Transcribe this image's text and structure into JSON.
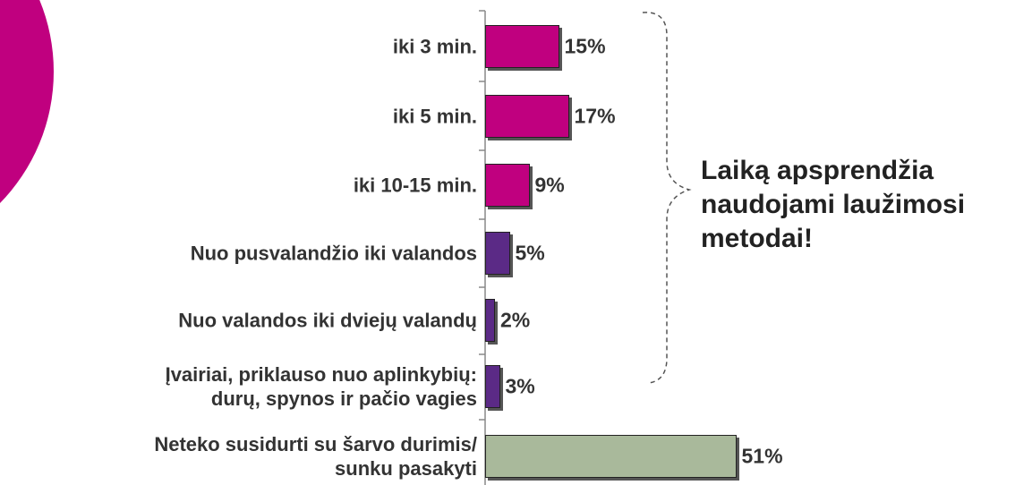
{
  "chart_data": {
    "type": "bar",
    "orientation": "horizontal",
    "categories": [
      "iki 3 min.",
      "iki 5 min.",
      "iki 10-15 min.",
      "Nuo pusvalandžio iki valandos",
      "Nuo valandos iki dviejų valandų",
      "Įvairiai, priklauso nuo aplinkybių:\ndurų, spynos ir pačio vagies",
      "Neteko susidurti su šarvo durimis/\nsunku pasakyti"
    ],
    "values": [
      15,
      17,
      9,
      5,
      2,
      3,
      51
    ],
    "value_labels": [
      "15%",
      "17%",
      "9%",
      "5%",
      "2%",
      "3%",
      "51%"
    ],
    "colors": [
      "#c0007f",
      "#c0007f",
      "#c0007f",
      "#5b2a86",
      "#5b2a86",
      "#5b2a86",
      "#a9b99b"
    ],
    "annotation": "Laiką apsprendžia naudojami laužimosi metodai!"
  }
}
